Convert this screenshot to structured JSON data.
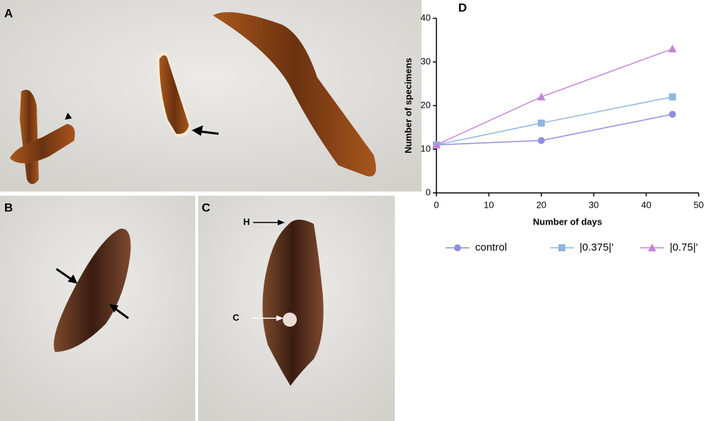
{
  "panels": [
    {
      "label": "A"
    },
    {
      "label": "B"
    },
    {
      "label": "C",
      "annotations": [
        "H",
        "C"
      ]
    }
  ],
  "chart_data": {
    "type": "line",
    "title": "D",
    "x_label": "Number of days",
    "y_label": "Number of specimens",
    "x": [
      0,
      20,
      45
    ],
    "series": [
      {
        "name": "control",
        "color": "#8f8fdc",
        "marker": "circle",
        "values": [
          11,
          12,
          18
        ]
      },
      {
        "name": "|0.375|'",
        "color": "#8fb6dd",
        "marker": "square",
        "values": [
          11,
          16,
          22
        ]
      },
      {
        "name": "|0.75|'",
        "color": "#c486d8",
        "marker": "triangle",
        "values": [
          11,
          22,
          33
        ]
      }
    ],
    "xlim": [
      0,
      50
    ],
    "xticks": [
      0,
      10,
      20,
      30,
      40,
      50
    ],
    "ylim": [
      0,
      40
    ],
    "yticks": [
      0,
      10,
      20,
      30,
      40
    ],
    "grid": false,
    "legend": "bottom"
  }
}
